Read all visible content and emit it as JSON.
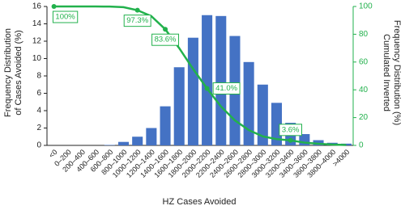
{
  "chart_data": {
    "type": "bar",
    "xlabel": "HZ Cases Avoided",
    "ylabel": [
      "Frequency Distribution",
      "of Cases Avoided (%)"
    ],
    "y2label": [
      "Cumulated Inverted",
      "Frequency Distribution (%)"
    ],
    "categories": [
      "<0",
      "0–200",
      "200–400",
      "400–600",
      "600–800",
      "800–1000",
      "1000–1200",
      "1200–1400",
      "1400–1600",
      "1600–1800",
      "1800–2000",
      "2000–2200",
      "2200–2400",
      "2400–2600",
      "2600–2800",
      "2800–3000",
      "3000–3200",
      "3200–3400",
      "3400–3600",
      "3600–3800",
      "3800–4000",
      ">4000"
    ],
    "series": [
      {
        "type": "bar",
        "color": "#4472c4",
        "values": [
          0,
          0,
          0,
          0,
          0.05,
          0.4,
          1.0,
          2.0,
          4.5,
          9.0,
          12.4,
          15.0,
          14.9,
          12.6,
          9.6,
          7.0,
          4.9,
          2.6,
          1.3,
          0.6,
          0.3,
          0.2
        ]
      },
      {
        "type": "line",
        "axis": "y2",
        "color": "#22b14c",
        "values": [
          100,
          100,
          100,
          100,
          99.9,
          99.5,
          97.3,
          93,
          83.6,
          70,
          55,
          41,
          28,
          18,
          11,
          6.5,
          4.5,
          3.6,
          2,
          1.2,
          0.6,
          0.3
        ],
        "value_labels": [
          "100%",
          null,
          null,
          null,
          null,
          null,
          "97.3%",
          null,
          "83.6%",
          null,
          null,
          "41.0%",
          null,
          null,
          null,
          null,
          null,
          "3.6%",
          null,
          null,
          null,
          null
        ]
      }
    ],
    "ylim": [
      0,
      16
    ],
    "yticks": [
      0,
      2,
      4,
      6,
      8,
      10,
      12,
      14,
      16
    ],
    "y2lim": [
      0,
      100
    ],
    "y2ticks": [
      0,
      20,
      40,
      60,
      80,
      100
    ],
    "y2color": "#22b14c"
  }
}
